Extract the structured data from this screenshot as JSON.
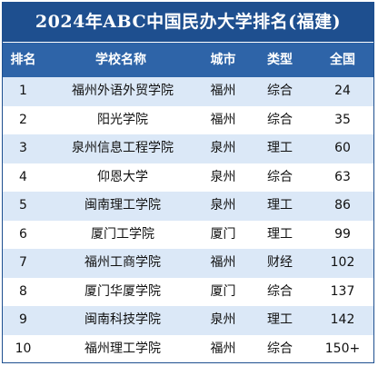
{
  "title": "2024年ABC中国民办大学排名(福建)",
  "colors": {
    "header_bg": "#1e4f8f",
    "subheader_bg": "#2e64a8",
    "stripe": "#dbe8f7"
  },
  "columns": [
    "排名",
    "学校名称",
    "城市",
    "类型",
    "全国"
  ],
  "rows": [
    {
      "rank": "1",
      "name": "福州外语外贸学院",
      "city": "福州",
      "type": "综合",
      "national": "24"
    },
    {
      "rank": "2",
      "name": "阳光学院",
      "city": "福州",
      "type": "综合",
      "national": "35"
    },
    {
      "rank": "3",
      "name": "泉州信息工程学院",
      "city": "泉州",
      "type": "理工",
      "national": "60"
    },
    {
      "rank": "4",
      "name": "仰恩大学",
      "city": "泉州",
      "type": "综合",
      "national": "63"
    },
    {
      "rank": "5",
      "name": "闽南理工学院",
      "city": "泉州",
      "type": "理工",
      "national": "86"
    },
    {
      "rank": "6",
      "name": "厦门工学院",
      "city": "厦门",
      "type": "理工",
      "national": "99"
    },
    {
      "rank": "7",
      "name": "福州工商学院",
      "city": "福州",
      "type": "财经",
      "national": "102"
    },
    {
      "rank": "8",
      "name": "厦门华厦学院",
      "city": "厦门",
      "type": "综合",
      "national": "137"
    },
    {
      "rank": "9",
      "name": "闽南科技学院",
      "city": "泉州",
      "type": "理工",
      "national": "142"
    },
    {
      "rank": "10",
      "name": "福州理工学院",
      "city": "福州",
      "type": "综合",
      "national": "150+"
    }
  ]
}
